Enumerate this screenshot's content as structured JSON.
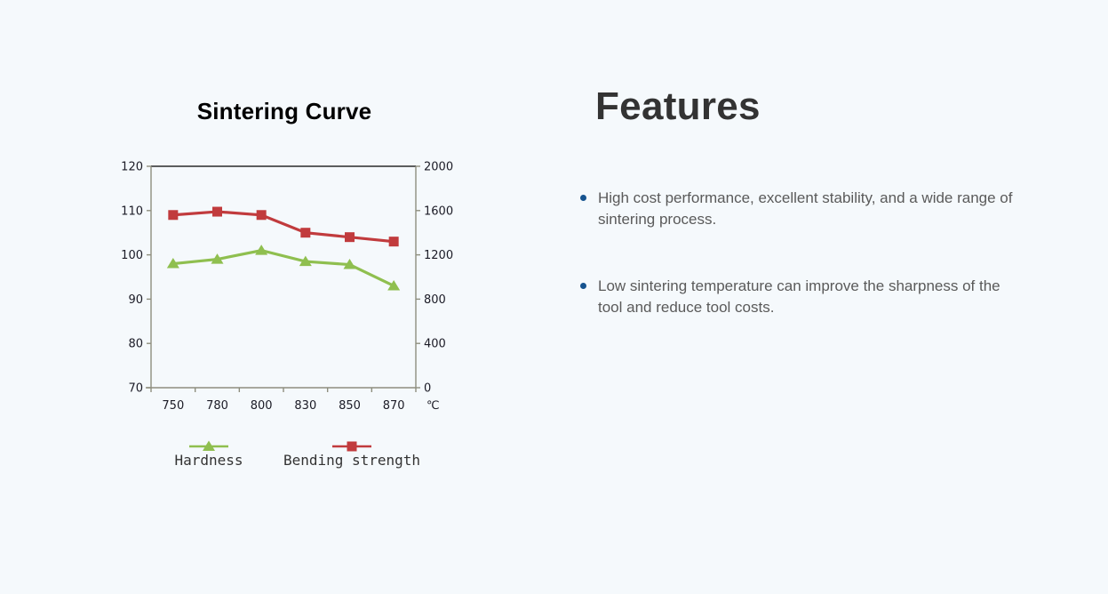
{
  "colors": {
    "page_background": "#f5f9fc",
    "chart_title": "#000000",
    "axis_border": "#8e8e7e",
    "axis_top_border": "#2a2a2a",
    "tick_label": "#1b1b26",
    "legend_label": "#333333",
    "features_heading": "#333333",
    "feature_text": "#5a5a5a",
    "bullet_dot": "#16538f",
    "hardness_green": "#8fbf4f",
    "bending_red": "#c13b3d"
  },
  "chart_data": {
    "type": "line",
    "title": "Sintering Curve",
    "categories": [
      "750",
      "780",
      "800",
      "830",
      "850",
      "870"
    ],
    "x_unit": "℃",
    "left_axis": {
      "ticks": [
        "120",
        "110",
        "100",
        "90",
        "80",
        "70"
      ],
      "range": [
        70,
        120
      ]
    },
    "right_axis": {
      "ticks": [
        "2000",
        "1600",
        "1200",
        "800",
        "400",
        "0"
      ],
      "range": [
        0,
        2000
      ]
    },
    "series": [
      {
        "name": "Hardness",
        "axis": "left",
        "color": "#8fbf4f",
        "marker": "triangle",
        "values": [
          98,
          99,
          101,
          98.5,
          97.8,
          93
        ]
      },
      {
        "name": "Bending strength",
        "axis": "right",
        "color": "#c13b3d",
        "marker": "square",
        "values": [
          1560,
          1590,
          1560,
          1400,
          1360,
          1320
        ]
      }
    ],
    "legend_position": "bottom",
    "grid": false
  },
  "features": {
    "heading": "Features",
    "items": [
      "High cost performance, excellent stability, and a wide range of sintering process.",
      "Low sintering temperature can improve the sharpness of the tool and reduce tool costs."
    ]
  }
}
